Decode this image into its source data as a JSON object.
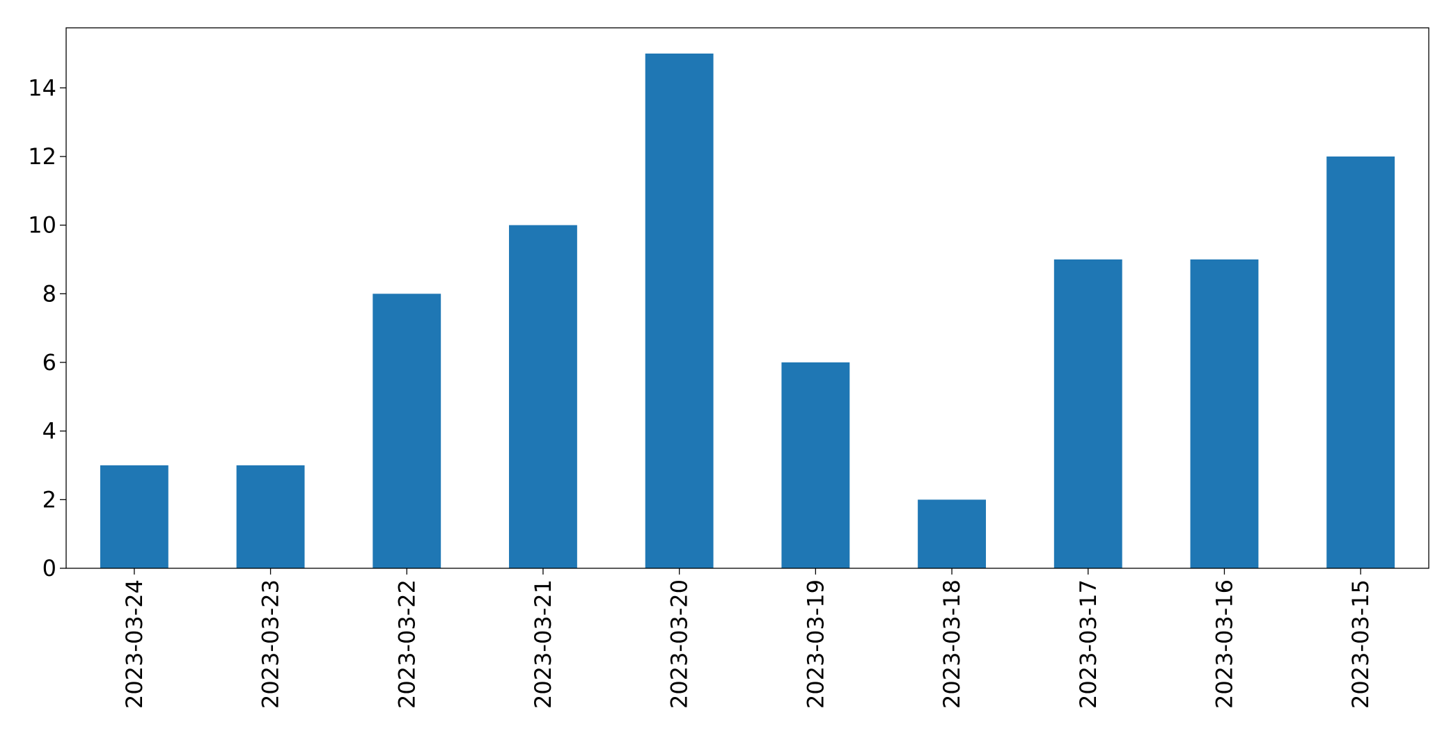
{
  "chart_data": {
    "type": "bar",
    "categories": [
      "2023-03-24",
      "2023-03-23",
      "2023-03-22",
      "2023-03-21",
      "2023-03-20",
      "2023-03-19",
      "2023-03-18",
      "2023-03-17",
      "2023-03-16",
      "2023-03-15"
    ],
    "values": [
      3,
      3,
      8,
      10,
      15,
      6,
      2,
      9,
      9,
      12
    ],
    "color": "#1f77b4",
    "ylim": [
      0,
      15.75
    ],
    "yticks": [
      0,
      2,
      4,
      6,
      8,
      10,
      12,
      14
    ],
    "grid": false
  }
}
